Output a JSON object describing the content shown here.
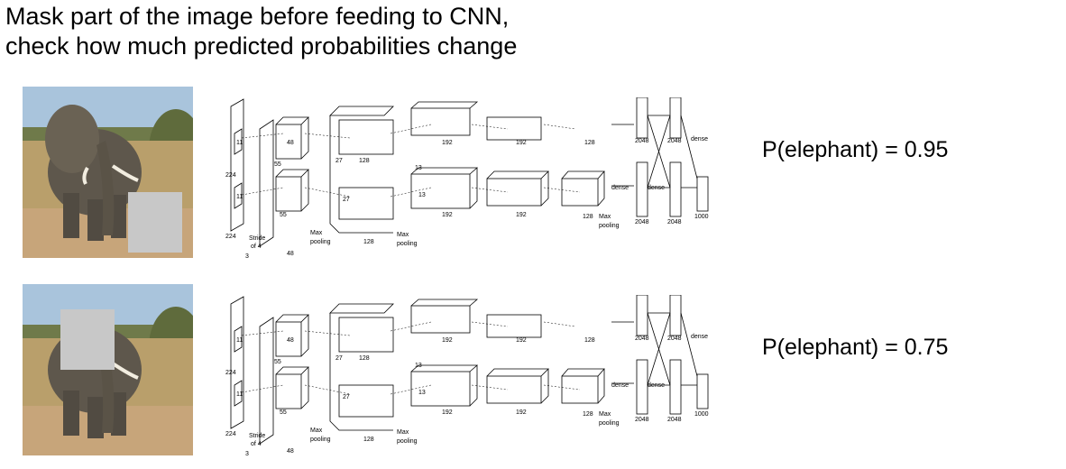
{
  "title": {
    "line1": "Mask part of the image before feeding to CNN,",
    "line2": "check how much predicted probabilities change"
  },
  "examples": [
    {
      "label": "P(elephant) = 0.95",
      "mask_position": "lower-right",
      "mask_color": "#c8c8c8"
    },
    {
      "label": "P(elephant) = 0.75",
      "mask_position": "upper-left (over elephant head)",
      "mask_color": "#c8c8c8"
    }
  ],
  "network": {
    "labels": {
      "in_224": "224",
      "in_11": "11",
      "stride_of": "Stride",
      "stride_4": "of 4",
      "in_3": "3",
      "k5": "5",
      "k3": "3",
      "d55": "55",
      "d27": "27",
      "d13": "13",
      "c48": "48",
      "c128": "128",
      "c192": "192",
      "c2048": "2048",
      "c1000": "1000",
      "max": "Max",
      "pooling": "pooling",
      "dense": "dense"
    }
  },
  "colors": {
    "sky": "#a9c4dc",
    "grass": "#b99f6b",
    "elephant": "#5e574c",
    "ground": "#c7a57a",
    "mask": "#c8c8c8"
  }
}
